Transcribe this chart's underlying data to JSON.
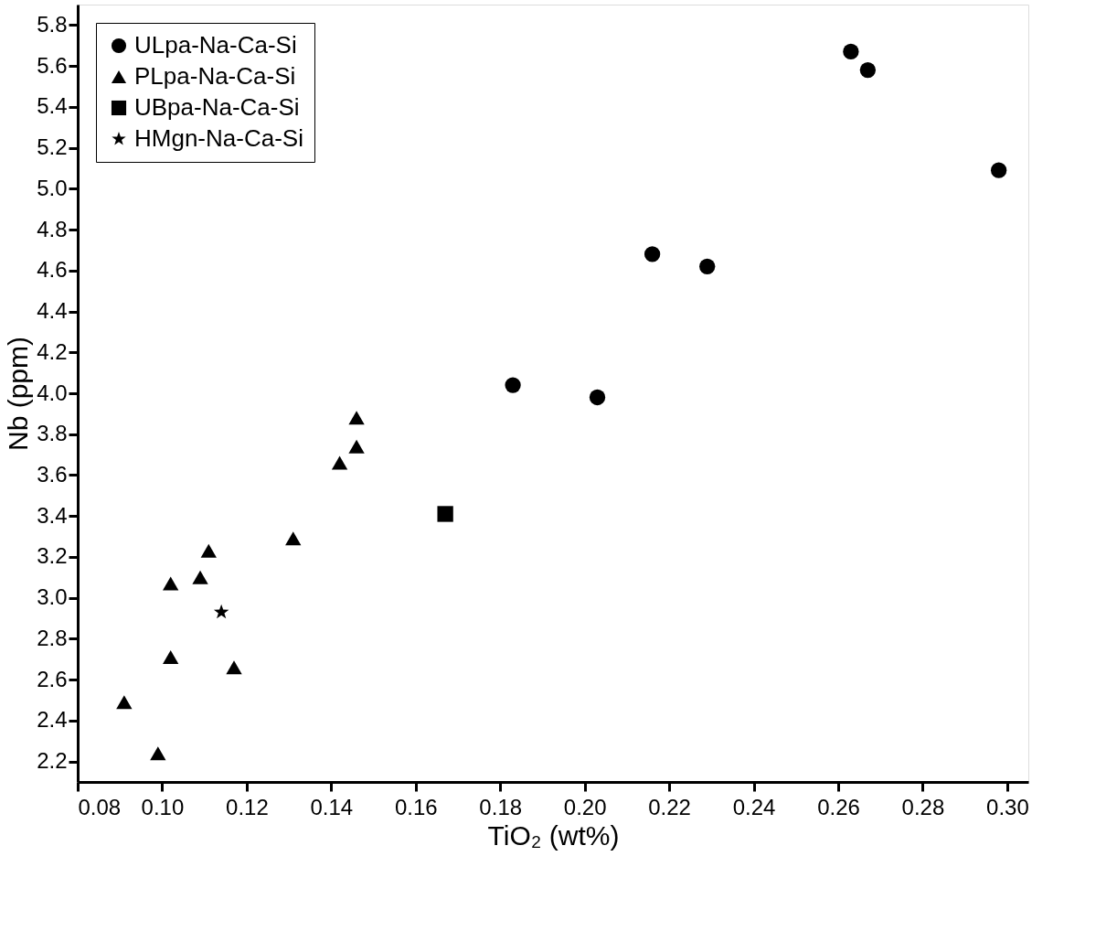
{
  "chart_data": {
    "type": "scatter",
    "xlabel": "TiO₂ (wt%)",
    "ylabel": "Nb (ppm)",
    "xlim": [
      0.08,
      0.305
    ],
    "ylim": [
      2.1,
      5.9
    ],
    "xticks": [
      0.08,
      {
        "value": 0.1,
        "label": "0.10"
      },
      0.12,
      0.14,
      0.16,
      0.18,
      {
        "value": 0.2,
        "label": "0.20"
      },
      0.22,
      0.24,
      0.26,
      0.28,
      {
        "value": 0.3,
        "label": "0.30"
      }
    ],
    "yticks": [
      2.2,
      2.4,
      2.6,
      2.8,
      {
        "value": 3,
        "label": "3.0"
      },
      3.2,
      3.4,
      3.6,
      3.8,
      {
        "value": 4,
        "label": "4.0"
      },
      4.2,
      4.4,
      4.6,
      4.8,
      {
        "value": 5,
        "label": "5.0"
      },
      5.2,
      5.4,
      5.6,
      5.8
    ],
    "grid": false,
    "legend": "top left",
    "series": [
      {
        "name": "ULpa-Na-Ca-Si",
        "color": "#000000",
        "marker": "circle",
        "x": [
          0.263,
          0.267,
          0.298,
          0.216,
          0.229,
          0.183,
          0.203
        ],
        "values": [
          5.67,
          5.58,
          5.09,
          4.68,
          4.62,
          4.04,
          3.98
        ]
      },
      {
        "name": "PLpa-Na-Ca-Si",
        "color": "#000000",
        "marker": "triangle",
        "x": [
          0.146,
          0.146,
          0.142,
          0.131,
          0.111,
          0.109,
          0.102,
          0.102,
          0.117,
          0.091,
          0.099
        ],
        "values": [
          3.88,
          3.74,
          3.66,
          3.29,
          3.23,
          3.1,
          3.07,
          2.71,
          2.66,
          2.49,
          2.24
        ]
      },
      {
        "name": "UBpa-Na-Ca-Si",
        "color": "#000000",
        "marker": "square",
        "x": [
          0.167
        ],
        "values": [
          3.41
        ]
      },
      {
        "name": "HMgn-Na-Ca-Si",
        "color": "#000000",
        "marker": "star",
        "x": [
          0.114
        ],
        "values": [
          2.93
        ]
      }
    ]
  }
}
